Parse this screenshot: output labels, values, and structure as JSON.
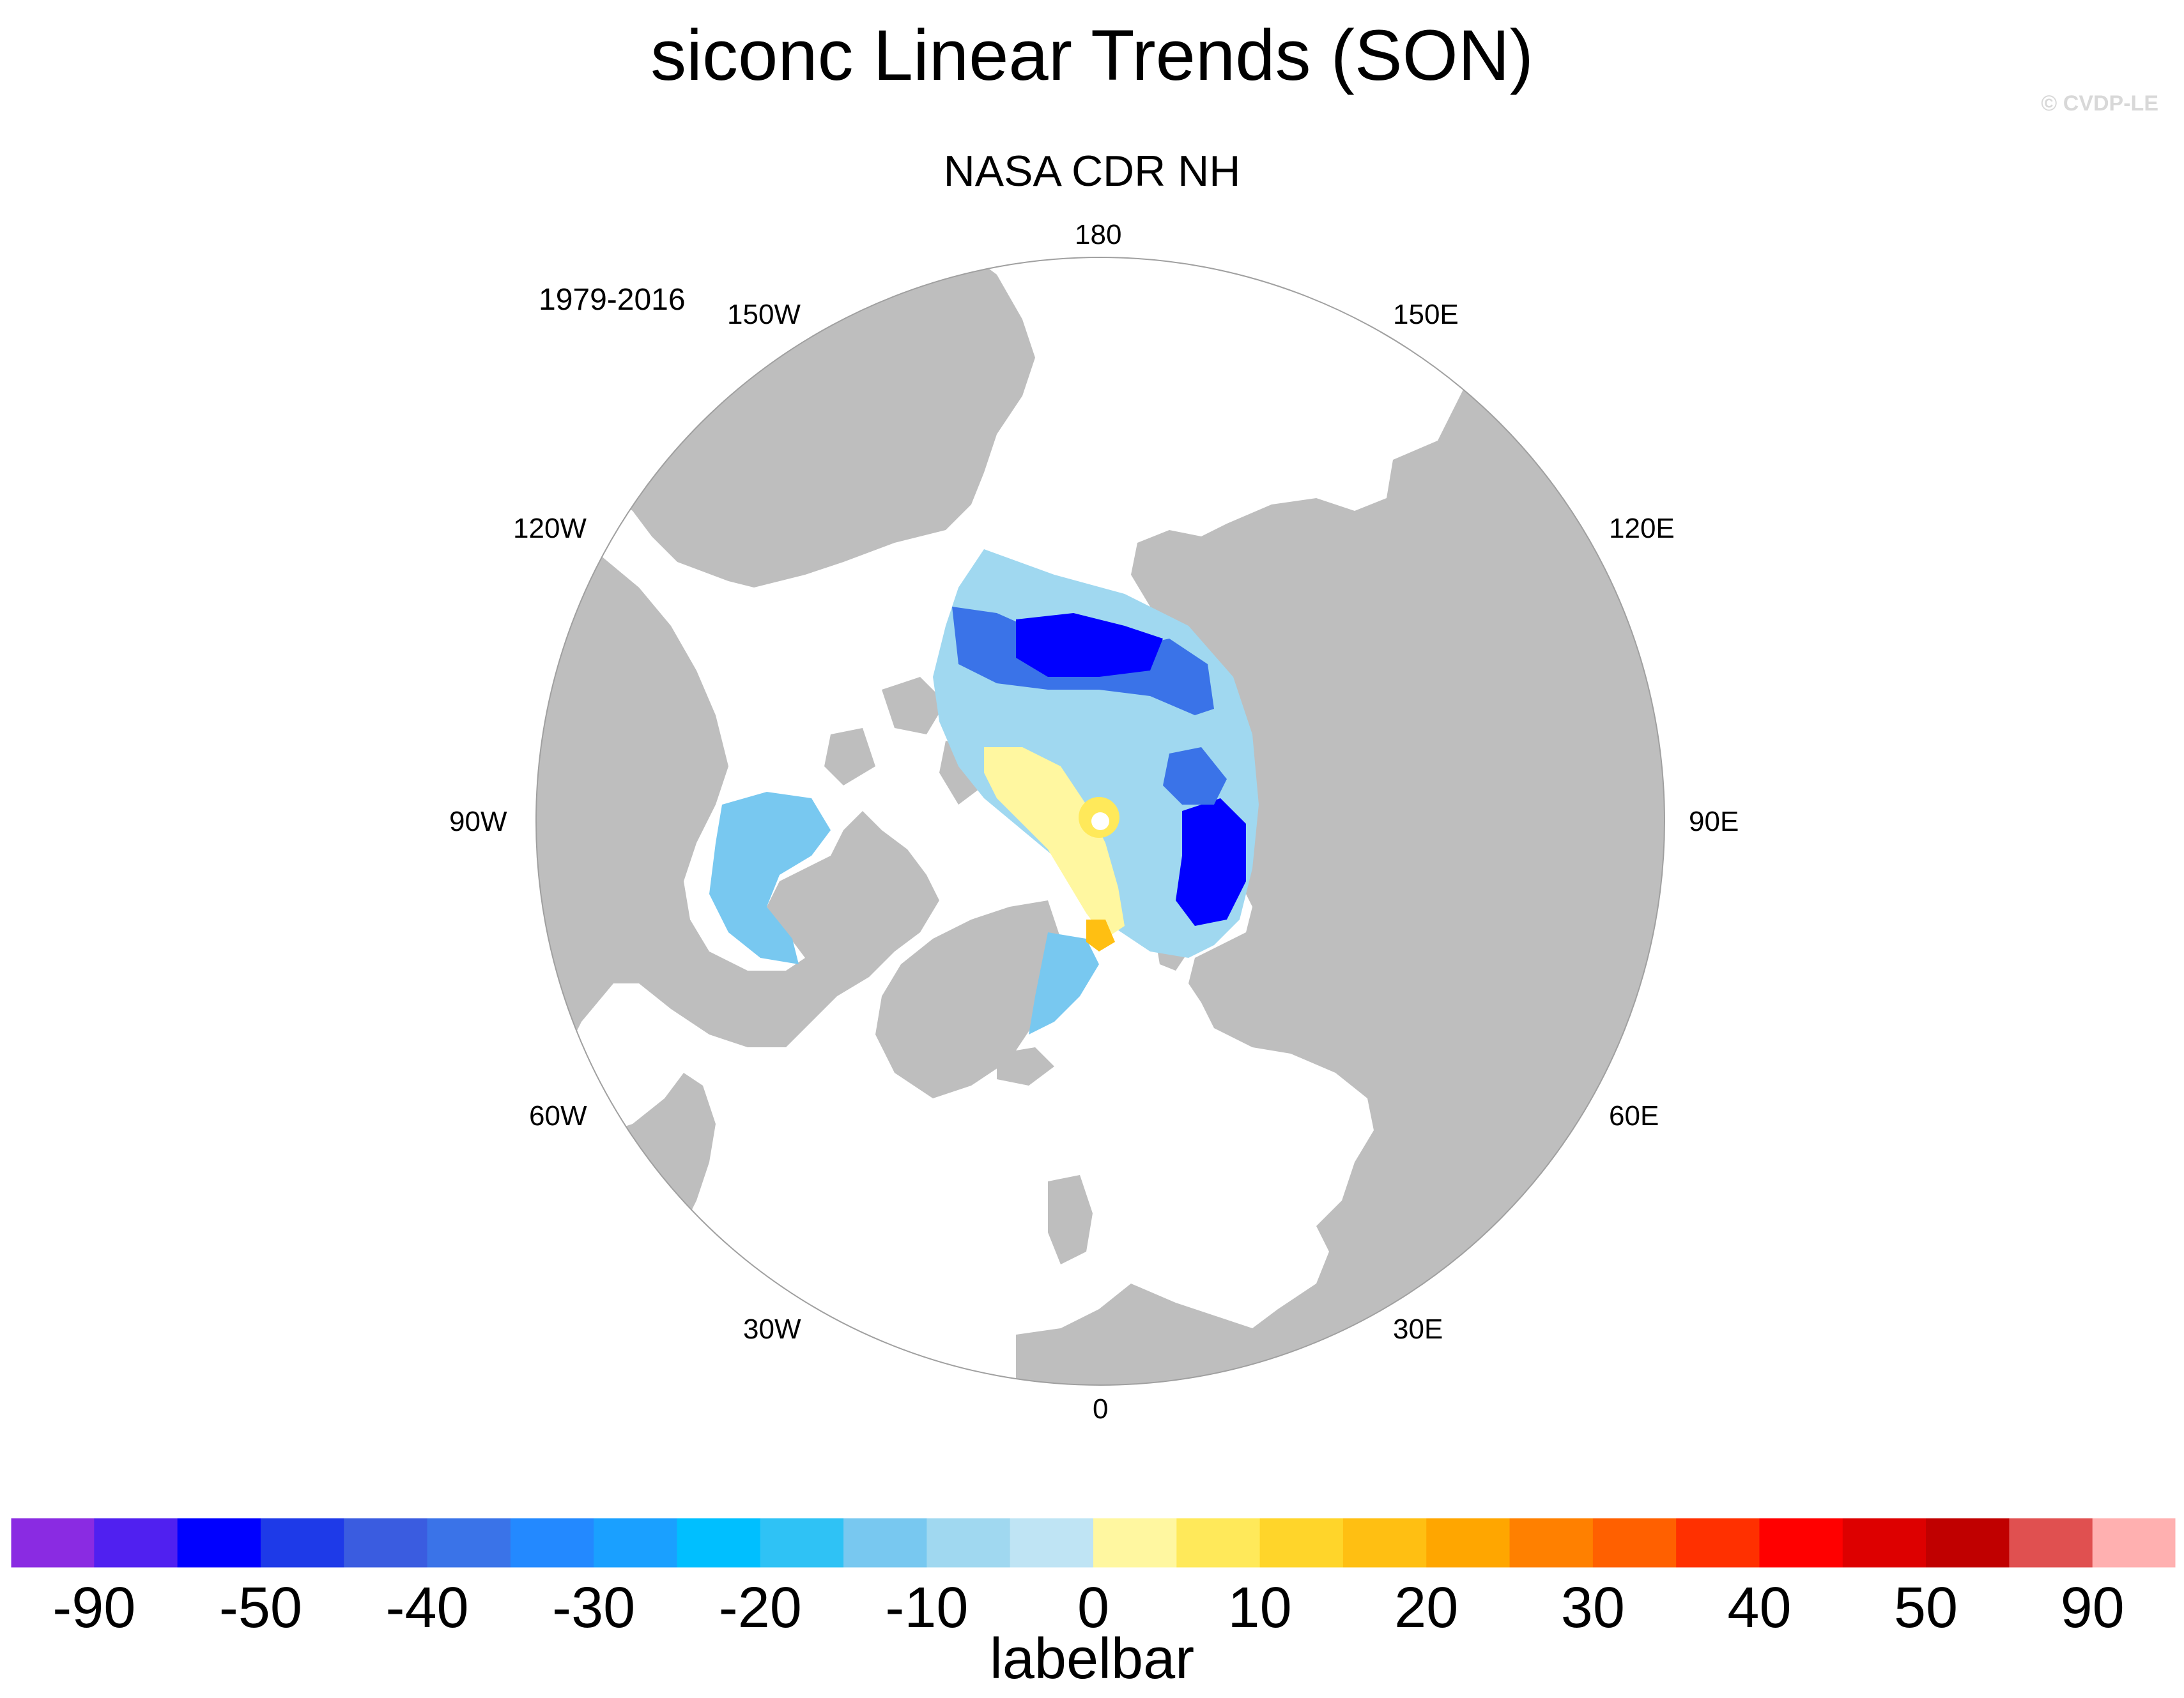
{
  "title": "siconc Linear Trends (SON)",
  "credit": "© CVDP-LE",
  "subtitle": "NASA CDR NH",
  "period": "1979-2016",
  "longitude_labels": [
    "180",
    "150E",
    "120E",
    "90E",
    "60E",
    "30E",
    "0",
    "30W",
    "60W",
    "90W",
    "120W",
    "150W"
  ],
  "colors": {
    "land": "#bebebe",
    "ocean": "#ffffff",
    "map_border": "#a0a0a0"
  },
  "labelbar": {
    "title": "labelbar",
    "colors": [
      "#8a2be2",
      "#5020f0",
      "#0000ff",
      "#1e3ae8",
      "#3a5ce0",
      "#3a73e8",
      "#2389ff",
      "#1aa0ff",
      "#00bfff",
      "#2fc2f5",
      "#78c8f0",
      "#a0d8f0",
      "#bfe4f4",
      "#fff7a0",
      "#ffe95a",
      "#ffd52a",
      "#ffbf12",
      "#ffa600",
      "#ff8000",
      "#ff6000",
      "#ff3000",
      "#ff0000",
      "#dd0000",
      "#c00000",
      "#e05050",
      "#ffb0b0"
    ],
    "tick_labels": [
      "-90",
      "-50",
      "-40",
      "-30",
      "-20",
      "-10",
      "0",
      "10",
      "20",
      "30",
      "40",
      "50",
      "90"
    ]
  }
}
